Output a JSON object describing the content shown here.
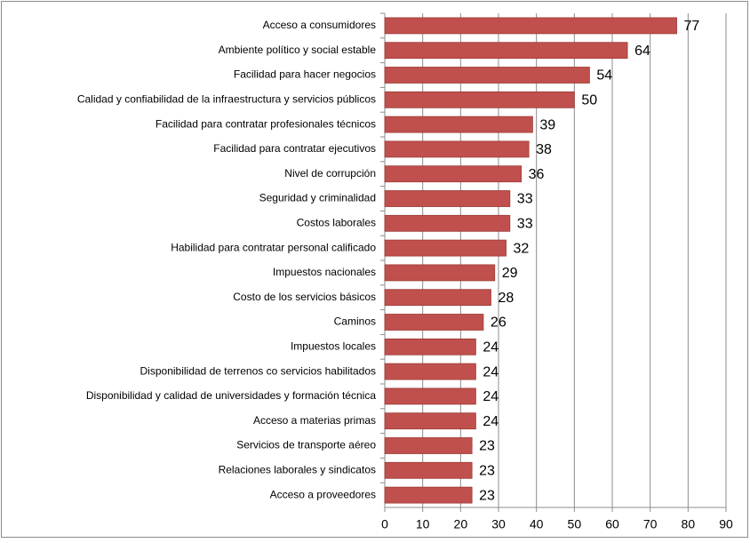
{
  "chart_data": {
    "type": "bar",
    "orientation": "horizontal",
    "categories": [
      "Acceso a consumidores",
      "Ambiente político y social estable",
      "Facilidad para hacer negocios",
      "Calidad y confiabilidad de la infraestructura y servicios públicos",
      "Facilidad para contratar profesionales técnicos",
      "Facilidad para contratar ejecutivos",
      "Nivel de corrupción",
      "Seguridad y criminalidad",
      "Costos laborales",
      "Habilidad para contratar personal calificado",
      "Impuestos nacionales",
      "Costo de los servicios básicos",
      "Caminos",
      "Impuestos locales",
      "Disponibilidad de terrenos co servicios habilitados",
      "Disponibilidad y calidad de universidades y formación técnica",
      "Acceso a materias primas",
      "Servicios de transporte aéreo",
      "Relaciones laborales y sindicatos",
      "Acceso a proveedores"
    ],
    "values": [
      77,
      64,
      54,
      50,
      39,
      38,
      36,
      33,
      33,
      32,
      29,
      28,
      26,
      24,
      24,
      24,
      24,
      23,
      23,
      23
    ],
    "color": "#c0504d",
    "xlim": [
      0,
      90
    ],
    "xticks": [
      0,
      10,
      20,
      30,
      40,
      50,
      60,
      70,
      80,
      90
    ],
    "grid": true
  }
}
